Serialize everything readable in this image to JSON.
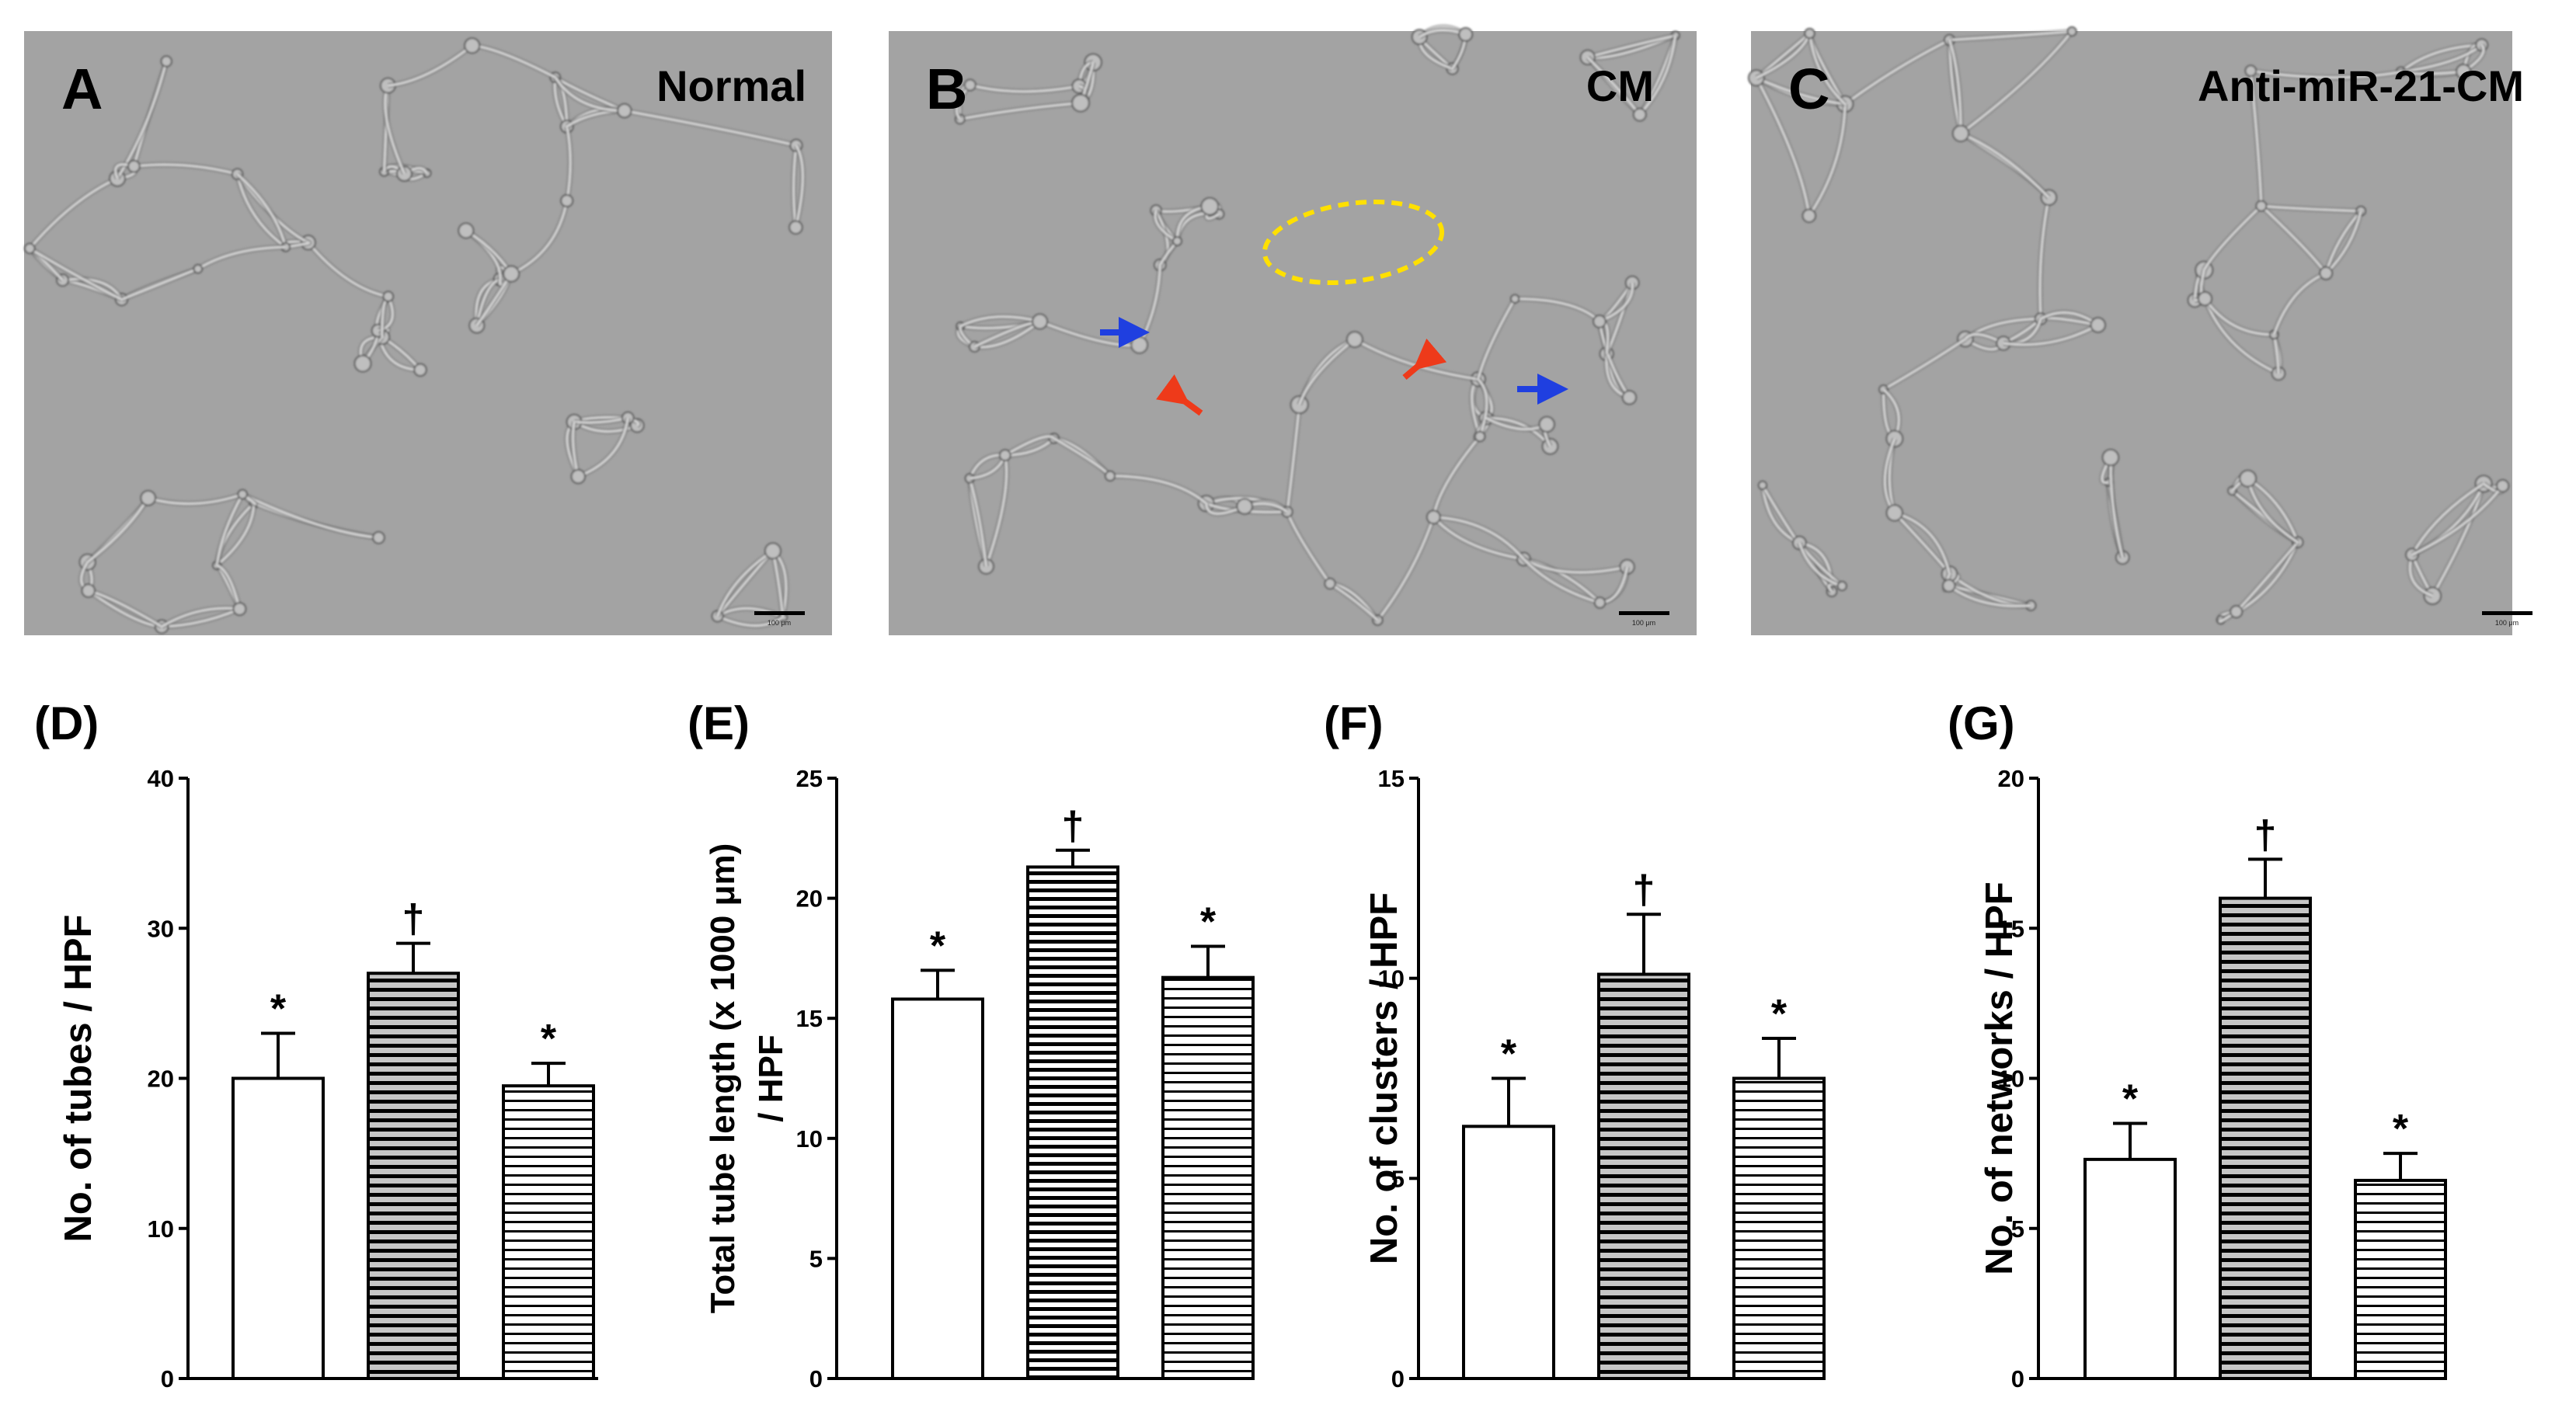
{
  "panels": [
    {
      "letter": "A",
      "label": "Normal"
    },
    {
      "letter": "B",
      "label": "CM"
    },
    {
      "letter": "C",
      "label": "Anti-miR-21-CM"
    }
  ],
  "scale_bar_text": "100 μm",
  "colors": {
    "micrograph_bg": "#a3a3a3",
    "cell_line": "#d7d7d7",
    "cell_edge": "#5a5a5a",
    "arrow_blue": "#1f3fe0",
    "arrow_red": "#ee3a1a",
    "dashed_yellow": "#ffe000",
    "bar_fill_white": "#ffffff",
    "stripe_dark": "#000000",
    "stripe_gray": "#c6c6c6"
  },
  "chart_data": [
    {
      "type": "bar",
      "panel_letter": "(D)",
      "ylabel": "No. of tubes / HPF",
      "ylim": [
        0,
        40
      ],
      "yticks": [
        0,
        10,
        20,
        30,
        40
      ],
      "series": [
        {
          "values": [
            20,
            27,
            19.5
          ],
          "errors": [
            3,
            2,
            1.5
          ],
          "significance": [
            "*",
            "†",
            "*"
          ]
        }
      ]
    },
    {
      "type": "bar",
      "panel_letter": "(E)",
      "ylabel": "Total tube length (x 1000 μm) / HPF",
      "ylim": [
        0,
        25
      ],
      "yticks": [
        0,
        5,
        10,
        15,
        20,
        25
      ],
      "series": [
        {
          "values": [
            15.8,
            21.3,
            16.7
          ],
          "errors": [
            1.2,
            0.7,
            1.3
          ],
          "significance": [
            "*",
            "†",
            "*"
          ]
        }
      ]
    },
    {
      "type": "bar",
      "panel_letter": "(F)",
      "ylabel": "No. of clusters / HPF",
      "ylim": [
        0,
        15
      ],
      "yticks": [
        0,
        5,
        10,
        15
      ],
      "series": [
        {
          "values": [
            6.3,
            10.1,
            7.5
          ],
          "errors": [
            1.2,
            1.5,
            1.0
          ],
          "significance": [
            "*",
            "†",
            "*"
          ]
        }
      ]
    },
    {
      "type": "bar",
      "panel_letter": "(G)",
      "ylabel": "No. of networks / HPF",
      "ylim": [
        0,
        20
      ],
      "yticks": [
        0,
        5,
        10,
        15,
        20
      ],
      "series": [
        {
          "values": [
            7.3,
            16.0,
            6.6
          ],
          "errors": [
            1.2,
            1.3,
            0.9
          ],
          "significance": [
            "*",
            "†",
            "*"
          ]
        }
      ]
    }
  ]
}
